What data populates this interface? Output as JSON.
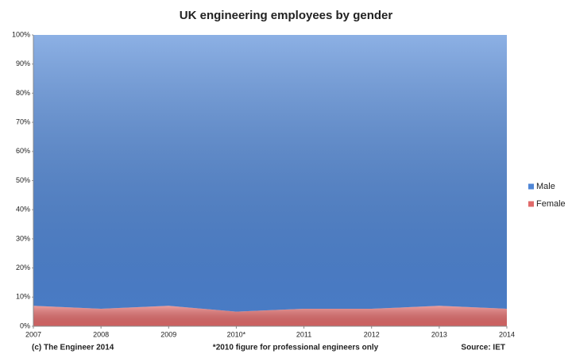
{
  "chart_data": {
    "type": "stacked_area",
    "title": "UK engineering employees by gender",
    "categories": [
      "2007",
      "2008",
      "2009",
      "2010*",
      "2011",
      "2012",
      "2013",
      "2014"
    ],
    "series": [
      {
        "name": "Male",
        "color": "#4f86d6",
        "values": [
          93,
          94,
          93,
          95,
          94,
          94,
          93,
          94
        ]
      },
      {
        "name": "Female",
        "color": "#e06a6a",
        "values": [
          7,
          6,
          7,
          5,
          6,
          6,
          7,
          6
        ]
      }
    ],
    "ylim": [
      0,
      100
    ],
    "yticks": [
      {
        "value": 0,
        "label": "0%"
      },
      {
        "value": 10,
        "label": "10%"
      },
      {
        "value": 20,
        "label": "20%"
      },
      {
        "value": 30,
        "label": "30%"
      },
      {
        "value": 40,
        "label": "40%"
      },
      {
        "value": 50,
        "label": "50%"
      },
      {
        "value": 60,
        "label": "60%"
      },
      {
        "value": 70,
        "label": "70%"
      },
      {
        "value": 80,
        "label": "80%"
      },
      {
        "value": 90,
        "label": "90%"
      },
      {
        "value": 100,
        "label": "100%"
      }
    ],
    "legend": "right",
    "credit": "(c) The Engineer 2014",
    "footnote": "*2010 figure for professional engineers only",
    "source": "Source: IET"
  }
}
